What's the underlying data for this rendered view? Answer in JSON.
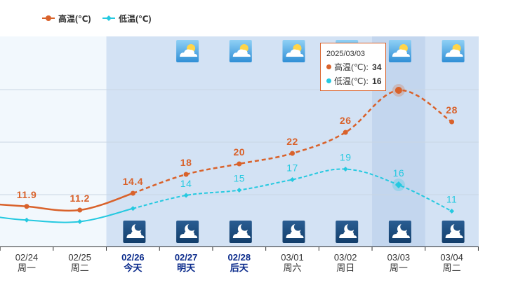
{
  "legend": {
    "high_label": "高温(℃)",
    "low_label": "低温(℃)"
  },
  "colors": {
    "high": "#d9622b",
    "low": "#25c9e0",
    "highlight_text": "#0c2c8c",
    "forecast_bg": "#d3e2f4",
    "history_bg": "#f2f8fd"
  },
  "chart_data": {
    "type": "line",
    "categories": [
      "02/24",
      "02/25",
      "02/26",
      "02/27",
      "02/28",
      "03/01",
      "03/02",
      "03/03",
      "03/04"
    ],
    "weekdays": [
      "周一",
      "周二",
      "今天",
      "明天",
      "后天",
      "周六",
      "周日",
      "周一",
      "周二"
    ],
    "highlighted": [
      false,
      false,
      true,
      true,
      true,
      false,
      false,
      false,
      false
    ],
    "series": [
      {
        "name": "高温(℃)",
        "values": [
          11.9,
          11.2,
          14.4,
          18,
          20,
          22,
          26,
          34,
          28
        ]
      },
      {
        "name": "低温(℃)",
        "values": [
          9.3,
          9.0,
          11.5,
          14,
          15,
          17,
          19,
          16,
          11
        ]
      }
    ],
    "data_labels": {
      "high": [
        "11.9",
        "11.2",
        "14.4",
        "18",
        "20",
        "22",
        "26",
        "",
        "28"
      ],
      "low": [
        "",
        "",
        "",
        "14",
        "15",
        "17",
        "19",
        "16",
        "11"
      ]
    },
    "day_icons": [
      "",
      "",
      "",
      "partly-cloudy-icon",
      "partly-cloudy-icon",
      "partly-cloudy-icon",
      "partly-cloudy-icon",
      "partly-cloudy-icon",
      "partly-cloudy-icon"
    ],
    "night_icons": [
      "",
      "",
      "night-partly-cloudy-icon",
      "night-partly-cloudy-icon",
      "night-partly-cloudy-icon",
      "night-partly-cloudy-icon",
      "night-partly-cloudy-icon",
      "night-partly-cloudy-icon",
      "night-partly-cloudy-icon"
    ],
    "ylim": [
      5,
      45
    ]
  },
  "tooltip": {
    "date": "2025/03/03",
    "high_label": "高温(℃):",
    "high_value": "34",
    "low_label": "低温(℃):",
    "low_value": "16"
  }
}
